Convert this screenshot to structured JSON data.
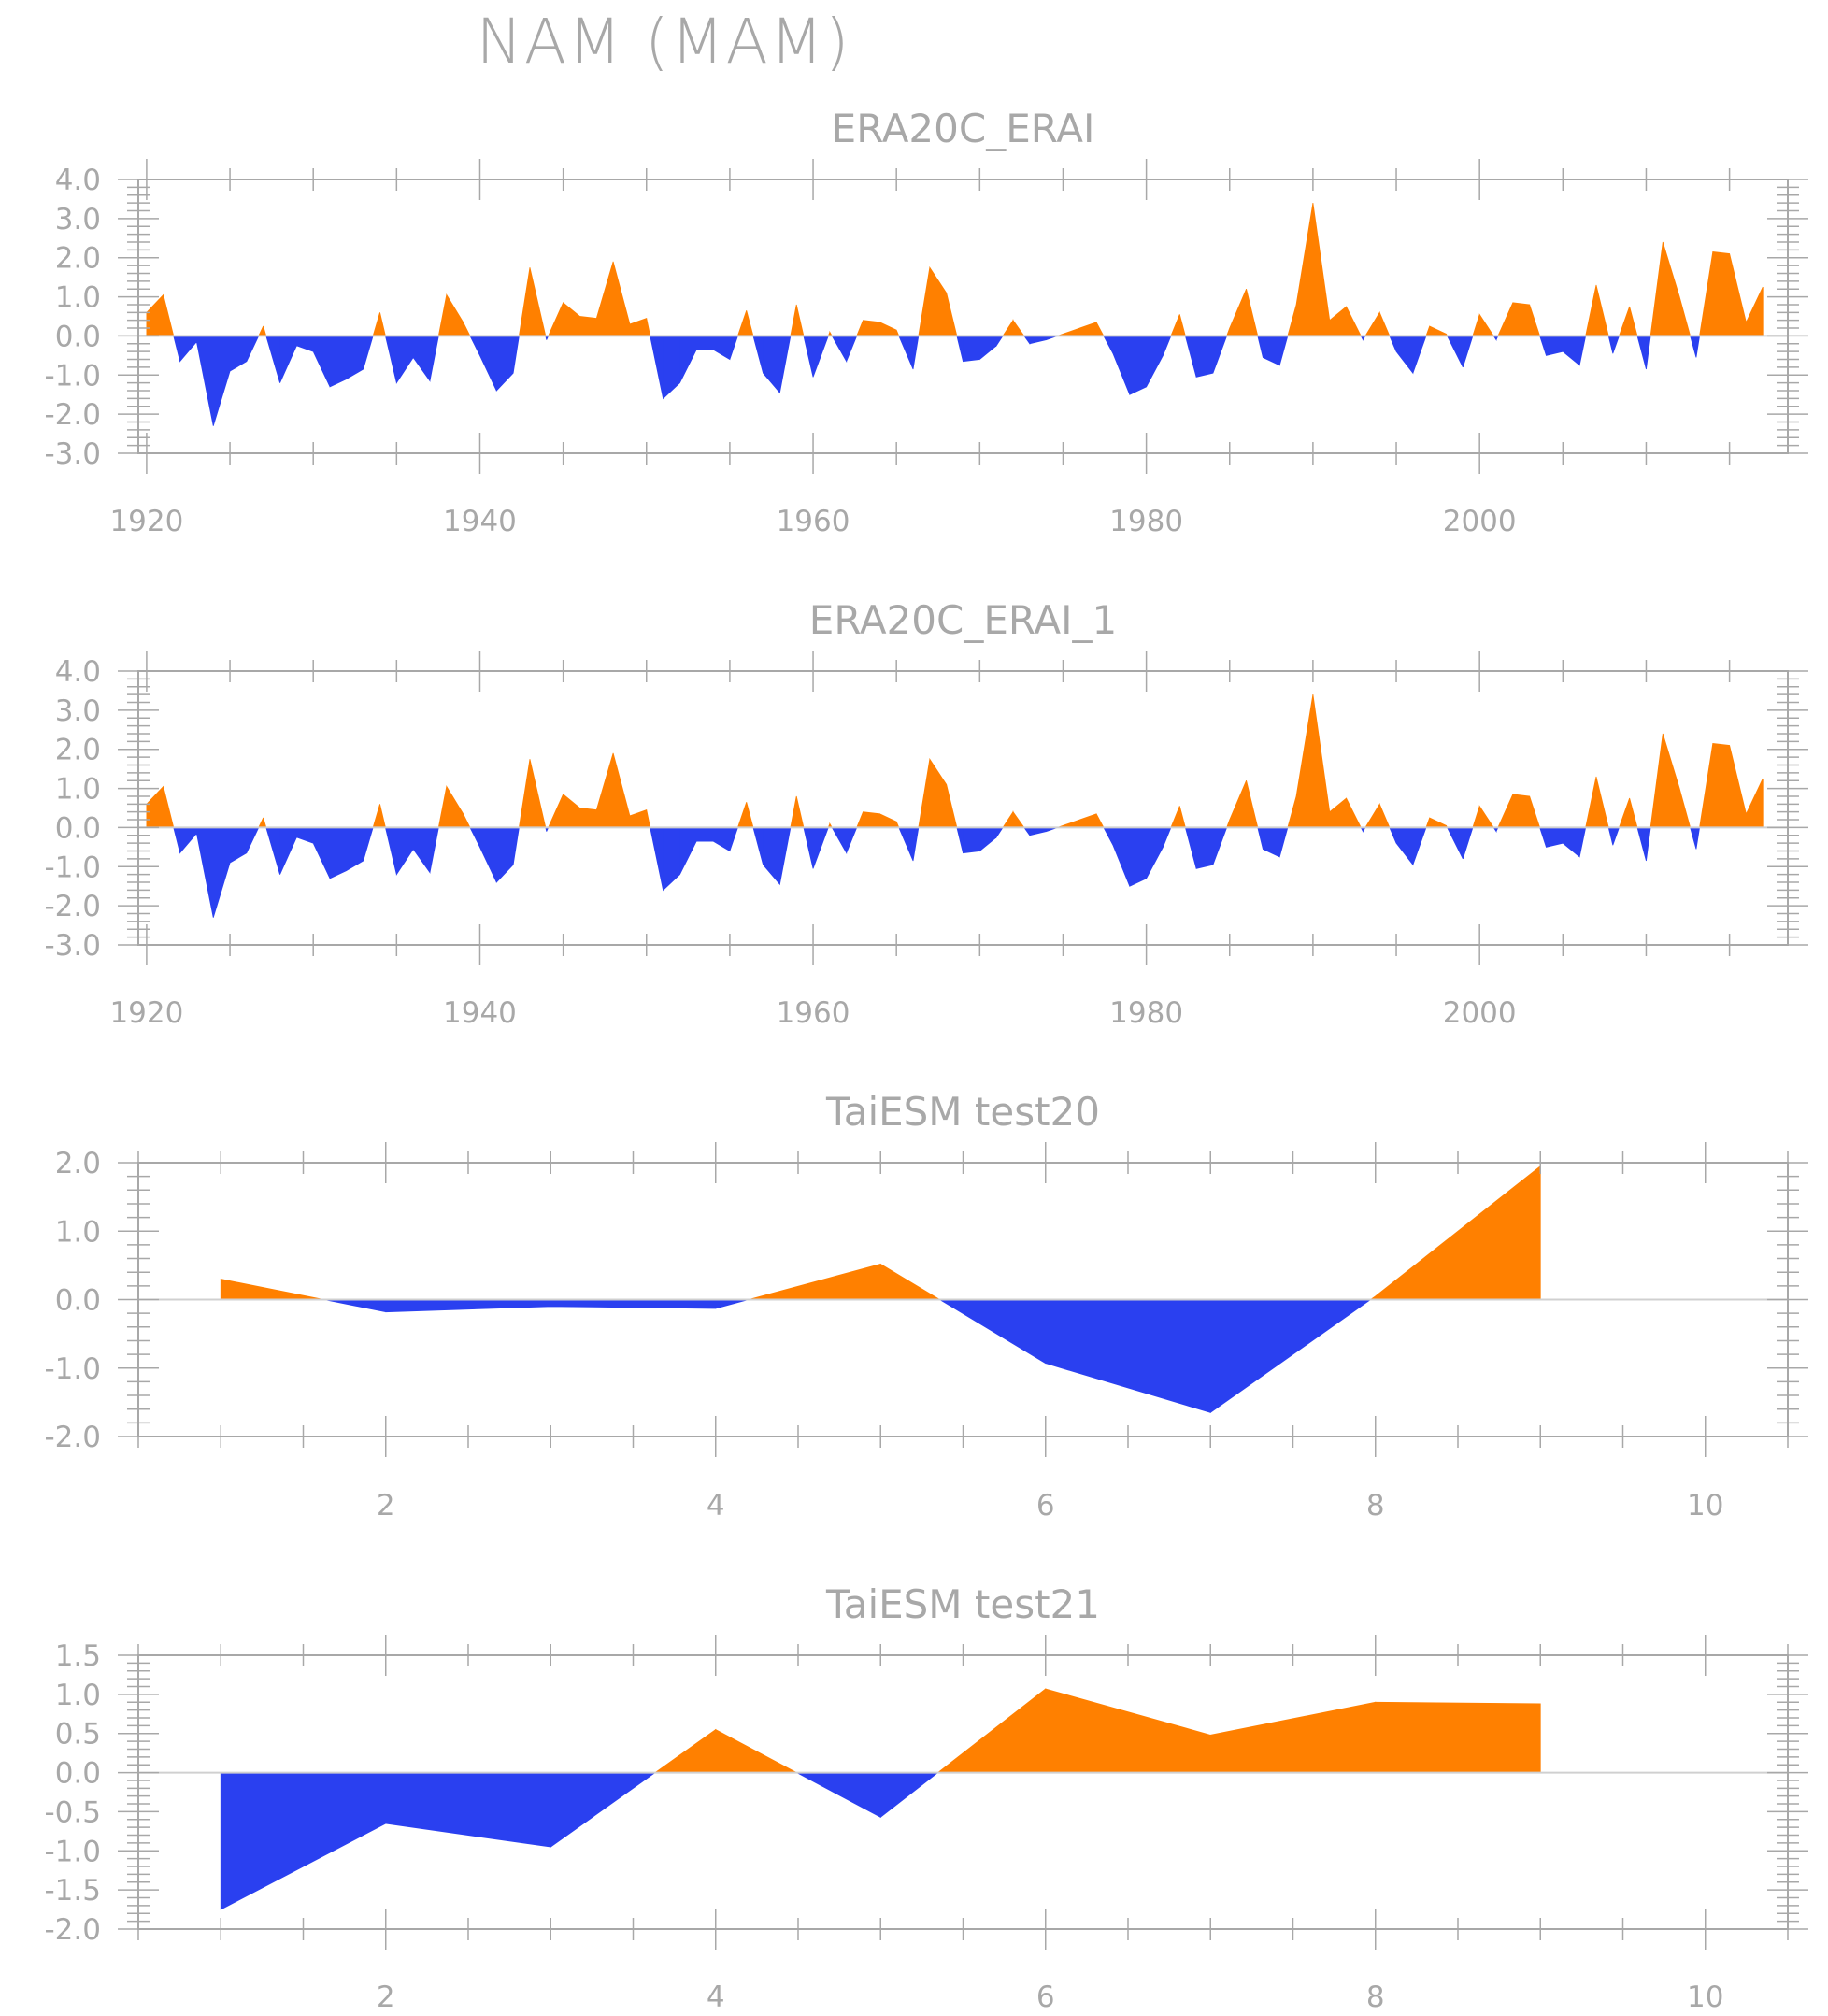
{
  "title": "NAM (MAM)",
  "colors": {
    "positive": "#ff8000",
    "negative": "#2a40f0",
    "axis": "#a8a8a8"
  },
  "chart_data": [
    {
      "type": "area",
      "title": "ERA20C_ERAI",
      "x": [
        1920,
        1921,
        1922,
        1923,
        1924,
        1925,
        1926,
        1927,
        1928,
        1929,
        1930,
        1931,
        1932,
        1933,
        1934,
        1935,
        1936,
        1937,
        1938,
        1939,
        1940,
        1941,
        1942,
        1943,
        1944,
        1945,
        1946,
        1947,
        1948,
        1949,
        1950,
        1951,
        1952,
        1953,
        1954,
        1955,
        1956,
        1957,
        1958,
        1959,
        1960,
        1961,
        1962,
        1963,
        1964,
        1965,
        1966,
        1967,
        1968,
        1969,
        1970,
        1971,
        1972,
        1973,
        1974,
        1975,
        1976,
        1977,
        1978,
        1979,
        1980,
        1981,
        1982,
        1983,
        1984,
        1985,
        1986,
        1987,
        1988,
        1989,
        1990,
        1991,
        1992,
        1993,
        1994,
        1995,
        1996,
        1997,
        1998,
        1999,
        2000,
        2001,
        2002,
        2003,
        2004,
        2005,
        2006,
        2007,
        2008,
        2009,
        2010,
        2011,
        2012,
        2013,
        2014,
        2015,
        2016,
        2017
      ],
      "values": [
        0.6,
        1.05,
        -0.65,
        -0.15,
        -2.3,
        -0.9,
        -0.65,
        0.25,
        -1.2,
        -0.25,
        -0.4,
        -1.3,
        -1.1,
        -0.85,
        0.6,
        -1.2,
        -0.55,
        -1.15,
        1.05,
        0.35,
        -0.5,
        -1.4,
        -0.95,
        1.75,
        -0.1,
        0.85,
        0.5,
        0.45,
        1.9,
        0.3,
        0.45,
        -1.6,
        -1.2,
        -0.35,
        -0.35,
        -0.6,
        0.65,
        -0.95,
        -1.45,
        0.8,
        -1.05,
        0.1,
        -0.65,
        0.4,
        0.35,
        0.15,
        -0.85,
        1.75,
        1.1,
        -0.65,
        -0.6,
        -0.25,
        0.4,
        -0.2,
        -0.1,
        0.05,
        0.2,
        0.35,
        -0.45,
        -1.5,
        -1.3,
        -0.5,
        0.55,
        -1.05,
        -0.95,
        0.2,
        1.2,
        -0.55,
        -0.75,
        0.8,
        3.4,
        0.4,
        0.75,
        -0.1,
        0.6,
        -0.4,
        -0.95,
        0.25,
        0.05,
        -0.8,
        0.55,
        -0.1,
        0.85,
        0.8,
        -0.5,
        -0.4,
        -0.75,
        1.3,
        -0.45,
        0.75,
        -0.85,
        2.4,
        1.0,
        -0.55,
        2.15,
        2.1,
        0.35,
        1.25
      ],
      "xlim": [
        1919.5,
        2018.5
      ],
      "ylim": [
        -3.0,
        4.0
      ],
      "xticks": [
        1920,
        1940,
        1960,
        1980,
        2000
      ],
      "xtick_labels": [
        "1920",
        "1940",
        "1960",
        "1980",
        "2000"
      ],
      "yticks": [
        -3.0,
        -2.0,
        -1.0,
        0.0,
        1.0,
        2.0,
        3.0,
        4.0
      ],
      "ytick_labels": [
        "-3.0",
        "-2.0",
        "-1.0",
        "0.0",
        "1.0",
        "2.0",
        "3.0",
        "4.0"
      ],
      "grid": false
    },
    {
      "type": "area",
      "title": "ERA20C_ERAI_1",
      "x": [
        1920,
        1921,
        1922,
        1923,
        1924,
        1925,
        1926,
        1927,
        1928,
        1929,
        1930,
        1931,
        1932,
        1933,
        1934,
        1935,
        1936,
        1937,
        1938,
        1939,
        1940,
        1941,
        1942,
        1943,
        1944,
        1945,
        1946,
        1947,
        1948,
        1949,
        1950,
        1951,
        1952,
        1953,
        1954,
        1955,
        1956,
        1957,
        1958,
        1959,
        1960,
        1961,
        1962,
        1963,
        1964,
        1965,
        1966,
        1967,
        1968,
        1969,
        1970,
        1971,
        1972,
        1973,
        1974,
        1975,
        1976,
        1977,
        1978,
        1979,
        1980,
        1981,
        1982,
        1983,
        1984,
        1985,
        1986,
        1987,
        1988,
        1989,
        1990,
        1991,
        1992,
        1993,
        1994,
        1995,
        1996,
        1997,
        1998,
        1999,
        2000,
        2001,
        2002,
        2003,
        2004,
        2005,
        2006,
        2007,
        2008,
        2009,
        2010,
        2011,
        2012,
        2013,
        2014,
        2015,
        2016,
        2017
      ],
      "values": [
        0.6,
        1.05,
        -0.65,
        -0.15,
        -2.3,
        -0.9,
        -0.65,
        0.25,
        -1.2,
        -0.25,
        -0.4,
        -1.3,
        -1.1,
        -0.85,
        0.6,
        -1.2,
        -0.55,
        -1.15,
        1.05,
        0.35,
        -0.5,
        -1.4,
        -0.95,
        1.75,
        -0.1,
        0.85,
        0.5,
        0.45,
        1.9,
        0.3,
        0.45,
        -1.6,
        -1.2,
        -0.35,
        -0.35,
        -0.6,
        0.65,
        -0.95,
        -1.45,
        0.8,
        -1.05,
        0.1,
        -0.65,
        0.4,
        0.35,
        0.15,
        -0.85,
        1.75,
        1.1,
        -0.65,
        -0.6,
        -0.25,
        0.4,
        -0.2,
        -0.1,
        0.05,
        0.2,
        0.35,
        -0.45,
        -1.5,
        -1.3,
        -0.5,
        0.55,
        -1.05,
        -0.95,
        0.2,
        1.2,
        -0.55,
        -0.75,
        0.8,
        3.4,
        0.4,
        0.75,
        -0.1,
        0.6,
        -0.4,
        -0.95,
        0.25,
        0.05,
        -0.8,
        0.55,
        -0.1,
        0.85,
        0.8,
        -0.5,
        -0.4,
        -0.75,
        1.3,
        -0.45,
        0.75,
        -0.85,
        2.4,
        1.0,
        -0.55,
        2.15,
        2.1,
        0.35,
        1.25
      ],
      "xlim": [
        1919.5,
        2018.5
      ],
      "ylim": [
        -3.0,
        4.0
      ],
      "xticks": [
        1920,
        1940,
        1960,
        1980,
        2000
      ],
      "xtick_labels": [
        "1920",
        "1940",
        "1960",
        "1980",
        "2000"
      ],
      "yticks": [
        -3.0,
        -2.0,
        -1.0,
        0.0,
        1.0,
        2.0,
        3.0,
        4.0
      ],
      "ytick_labels": [
        "-3.0",
        "-2.0",
        "-1.0",
        "0.0",
        "1.0",
        "2.0",
        "3.0",
        "4.0"
      ],
      "grid": false
    },
    {
      "type": "area",
      "title": "TaiESM test20",
      "x": [
        1,
        2,
        3,
        4,
        5,
        6,
        7,
        8,
        9
      ],
      "values": [
        0.3,
        -0.18,
        -0.1,
        -0.13,
        0.52,
        -0.93,
        -1.65,
        0.05,
        1.95
      ],
      "xlim": [
        0.5,
        10.5
      ],
      "ylim": [
        -2.0,
        2.0
      ],
      "xticks": [
        2,
        4,
        6,
        8,
        10
      ],
      "xtick_labels": [
        "2",
        "4",
        "6",
        "8",
        "10"
      ],
      "yticks": [
        -2.0,
        -1.0,
        0.0,
        1.0,
        2.0
      ],
      "ytick_labels": [
        "-2.0",
        "-1.0",
        "0.0",
        "1.0",
        "2.0"
      ],
      "grid": false
    },
    {
      "type": "area",
      "title": "TaiESM test21",
      "x": [
        1,
        2,
        3,
        4,
        5,
        6,
        7,
        8,
        9
      ],
      "values": [
        -1.75,
        -0.65,
        -0.95,
        0.55,
        -0.57,
        1.07,
        0.48,
        0.9,
        0.88
      ],
      "xlim": [
        0.5,
        10.5
      ],
      "ylim": [
        -2.0,
        1.5
      ],
      "xticks": [
        2,
        4,
        6,
        8,
        10
      ],
      "xtick_labels": [
        "2",
        "4",
        "6",
        "8",
        "10"
      ],
      "yticks": [
        -2.0,
        -1.5,
        -1.0,
        -0.5,
        0.0,
        0.5,
        1.0,
        1.5
      ],
      "ytick_labels": [
        "-2.0",
        "-1.5",
        "-1.0",
        "-0.5",
        "0.0",
        "0.5",
        "1.0",
        "1.5"
      ],
      "grid": false
    }
  ]
}
